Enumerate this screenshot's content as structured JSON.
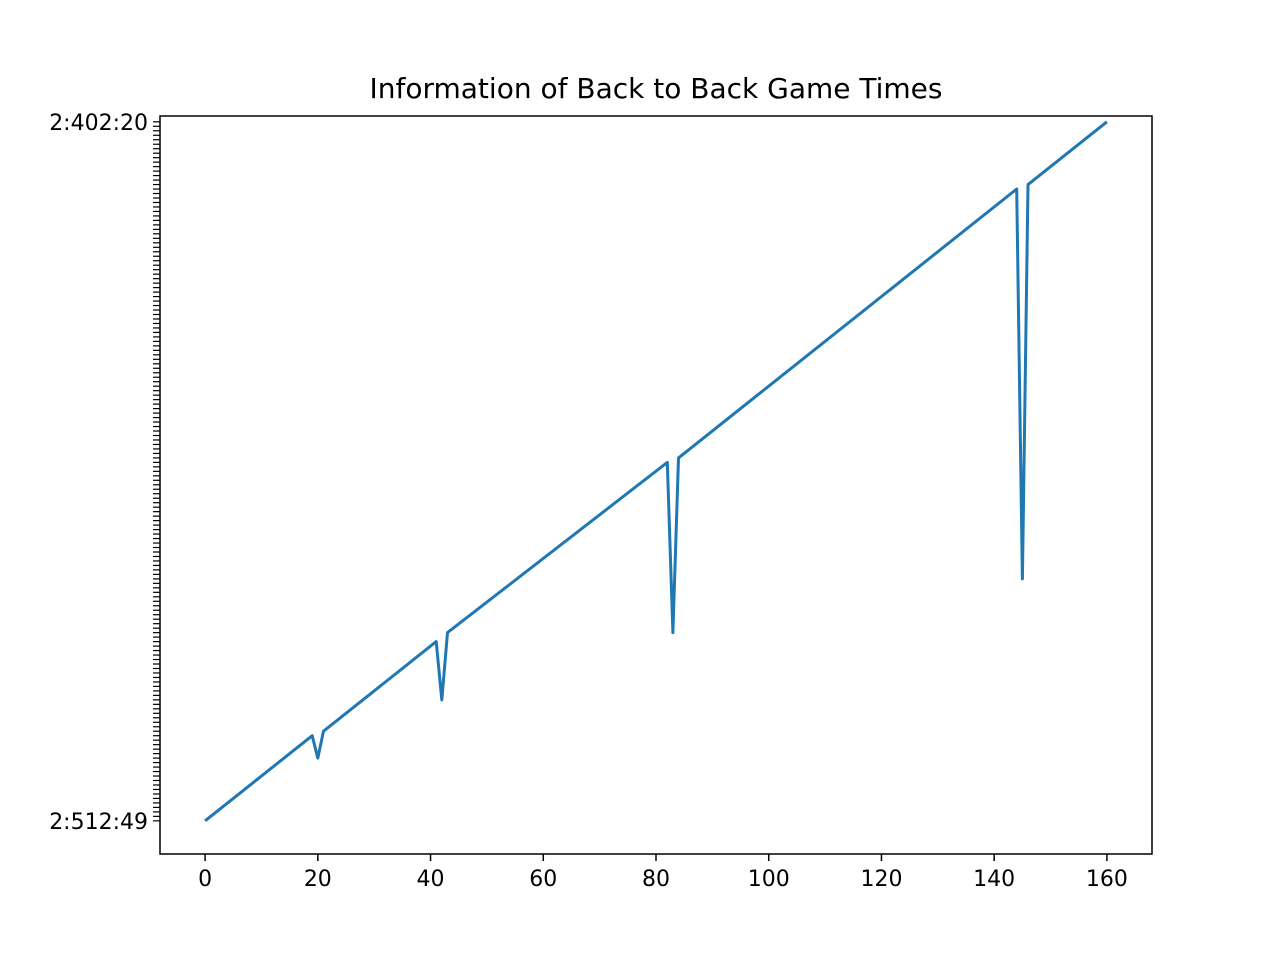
{
  "chart_data": {
    "type": "line",
    "title": "Information of Back to Back Game Times",
    "xlabel": "",
    "ylabel": "",
    "xlim": [
      -8,
      168
    ],
    "x_ticks": [
      0,
      20,
      40,
      60,
      80,
      100,
      120,
      140,
      160
    ],
    "x_tick_labels": [
      "0",
      "20",
      "40",
      "60",
      "80",
      "100",
      "120",
      "140",
      "160"
    ],
    "ylim": [
      -7.4,
      157.3
    ],
    "y_tick_top_label": "2:402:20",
    "y_tick_bottom_label": "2:512:49",
    "grid": false,
    "legend": "none",
    "line_color": "#1f77b4",
    "series": [
      {
        "points": [
          [
            0,
            0
          ],
          [
            19,
            19
          ],
          [
            20,
            14
          ],
          [
            21,
            20
          ],
          [
            41,
            40
          ],
          [
            42,
            27
          ],
          [
            43,
            42
          ],
          [
            82,
            80
          ],
          [
            83,
            42
          ],
          [
            84,
            81
          ],
          [
            144,
            141
          ],
          [
            145,
            54
          ],
          [
            146,
            142
          ],
          [
            160,
            156
          ]
        ]
      }
    ]
  }
}
